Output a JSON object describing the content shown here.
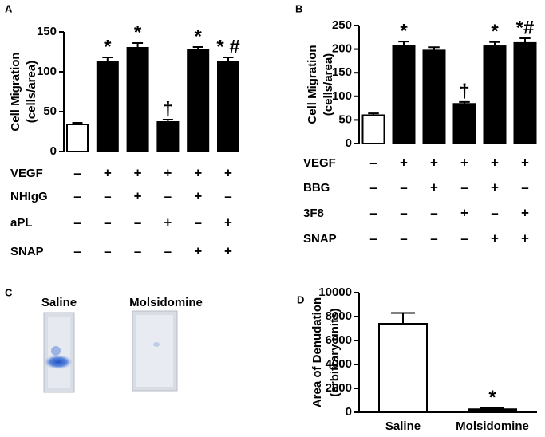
{
  "chart_data": [
    {
      "type": "bar",
      "label": "A",
      "ylabel": [
        "Cell Migration",
        "(cells/area)"
      ],
      "values": [
        34,
        113,
        130,
        37,
        127,
        112
      ],
      "errors": [
        2,
        5,
        6,
        3,
        4,
        6
      ],
      "colors": [
        "#ffffff",
        "#000000",
        "#000000",
        "#000000",
        "#000000",
        "#000000"
      ],
      "annotations": [
        null,
        "*",
        "*",
        "†",
        "*",
        "* #"
      ],
      "ylim": [
        0,
        150
      ],
      "yticks": [
        0,
        50,
        100,
        150
      ],
      "conditions": [
        {
          "name": "VEGF",
          "signs": [
            "–",
            "+",
            "+",
            "+",
            "+",
            "+"
          ]
        },
        {
          "name": "NHIgG",
          "signs": [
            "–",
            "–",
            "+",
            "–",
            "+",
            "–"
          ]
        },
        {
          "name": "aPL",
          "signs": [
            "–",
            "–",
            "–",
            "+",
            "–",
            "+"
          ]
        },
        {
          "name": "SNAP",
          "signs": [
            "–",
            "–",
            "–",
            "–",
            "+",
            "+"
          ]
        }
      ]
    },
    {
      "type": "bar",
      "label": "B",
      "ylabel": [
        "Cell Migration",
        "(cells/area)"
      ],
      "values": [
        60,
        207,
        197,
        84,
        206,
        213
      ],
      "errors": [
        4,
        9,
        7,
        4,
        9,
        10
      ],
      "colors": [
        "#ffffff",
        "#000000",
        "#000000",
        "#000000",
        "#000000",
        "#000000"
      ],
      "annotations": [
        null,
        "*",
        null,
        "†",
        "*",
        "*#"
      ],
      "ylim": [
        0,
        250
      ],
      "yticks": [
        0,
        50,
        100,
        150,
        200,
        250
      ],
      "conditions": [
        {
          "name": "VEGF",
          "signs": [
            "–",
            "+",
            "+",
            "+",
            "+",
            "+"
          ]
        },
        {
          "name": "BBG",
          "signs": [
            "–",
            "–",
            "+",
            "–",
            "+",
            "–"
          ]
        },
        {
          "name": "3F8",
          "signs": [
            "–",
            "–",
            "–",
            "+",
            "–",
            "+"
          ]
        },
        {
          "name": "SNAP",
          "signs": [
            "–",
            "–",
            "–",
            "–",
            "+",
            "+"
          ]
        }
      ]
    },
    {
      "type": "bar",
      "label": "D",
      "ylabel": [
        "Area of Denudation",
        "(arbitrary units)"
      ],
      "categories": [
        "Saline",
        "Molsidomine"
      ],
      "values": [
        7400,
        250
      ],
      "errors": [
        900,
        100
      ],
      "colors": [
        "#ffffff",
        "#000000"
      ],
      "annotations": [
        null,
        "*"
      ],
      "ylim": [
        0,
        10000
      ],
      "yticks": [
        0,
        2000,
        4000,
        6000,
        8000,
        10000
      ]
    }
  ],
  "image_panel": {
    "label": "C",
    "captions": [
      "Saline",
      "Molsidomine"
    ]
  }
}
